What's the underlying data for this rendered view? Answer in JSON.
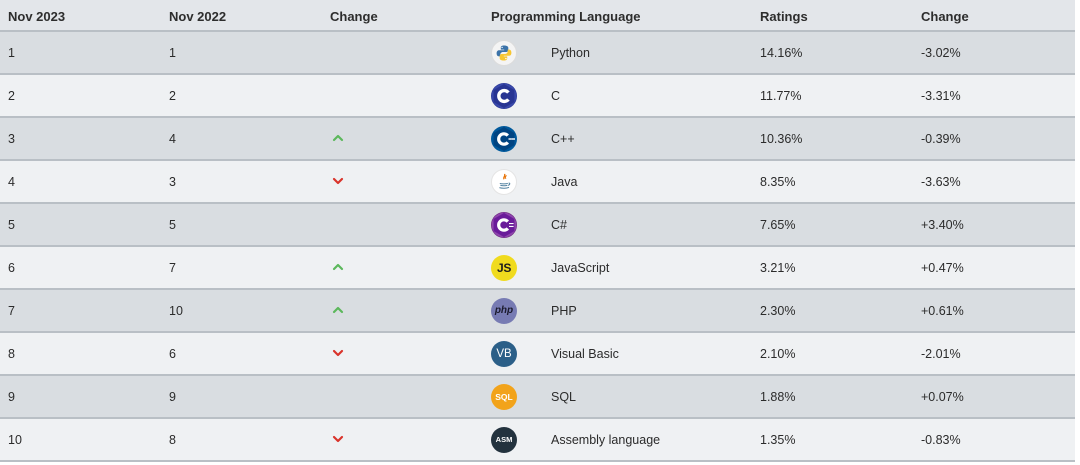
{
  "header": {
    "nov2023": "Nov 2023",
    "nov2022": "Nov 2022",
    "change": "Change",
    "language": "Programming Language",
    "ratings": "Ratings",
    "change_pct": "Change"
  },
  "rows": [
    {
      "nov2023": "1",
      "nov2022": "1",
      "trend": "none",
      "icon": "python-logo-icon",
      "language": "Python",
      "rating": "14.16%",
      "change": "-3.02%"
    },
    {
      "nov2023": "2",
      "nov2022": "2",
      "trend": "none",
      "icon": "c-logo-icon",
      "language": "C",
      "rating": "11.77%",
      "change": "-3.31%"
    },
    {
      "nov2023": "3",
      "nov2022": "4",
      "trend": "up",
      "icon": "cpp-logo-icon",
      "language": "C++",
      "rating": "10.36%",
      "change": "-0.39%"
    },
    {
      "nov2023": "4",
      "nov2022": "3",
      "trend": "down",
      "icon": "java-logo-icon",
      "language": "Java",
      "rating": "8.35%",
      "change": "-3.63%"
    },
    {
      "nov2023": "5",
      "nov2022": "5",
      "trend": "none",
      "icon": "csharp-logo-icon",
      "language": "C#",
      "rating": "7.65%",
      "change": "+3.40%"
    },
    {
      "nov2023": "6",
      "nov2022": "7",
      "trend": "up",
      "icon": "javascript-logo-icon",
      "language": "JavaScript",
      "rating": "3.21%",
      "change": "+0.47%"
    },
    {
      "nov2023": "7",
      "nov2022": "10",
      "trend": "up",
      "icon": "php-logo-icon",
      "language": "PHP",
      "rating": "2.30%",
      "change": "+0.61%"
    },
    {
      "nov2023": "8",
      "nov2022": "6",
      "trend": "down",
      "icon": "visual-basic-logo-icon",
      "language": "Visual Basic",
      "rating": "2.10%",
      "change": "-2.01%"
    },
    {
      "nov2023": "9",
      "nov2022": "9",
      "trend": "none",
      "icon": "sql-logo-icon",
      "language": "SQL",
      "rating": "1.88%",
      "change": "+0.07%"
    },
    {
      "nov2023": "10",
      "nov2022": "8",
      "trend": "down",
      "icon": "assembly-logo-icon",
      "language": "Assembly language",
      "rating": "1.35%",
      "change": "-0.83%"
    }
  ],
  "logos": {
    "js_text": "JS",
    "php_text": "php",
    "vb_text": "VB",
    "sql_text": "SQL",
    "asm_text": "ASM"
  },
  "colors": {
    "trend_up": "#5cb85c",
    "trend_down": "#d9342b",
    "header_bg": "#e3e6ea",
    "row_odd_bg": "#d9dde1",
    "row_even_bg": "#eff1f3"
  }
}
